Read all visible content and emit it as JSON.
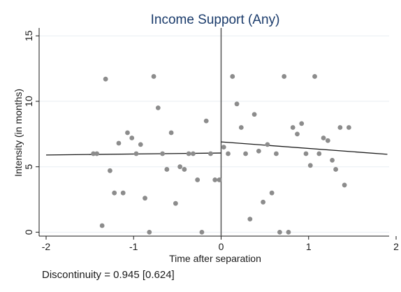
{
  "chart_data": {
    "type": "scatter",
    "title": "Income Support (Any)",
    "xlabel": "Time after separation",
    "ylabel": "Intensity (in months)",
    "xlim": [
      -2.0,
      2.0
    ],
    "ylim": [
      -0.3,
      15.5
    ],
    "x_ticks": [
      -2,
      -1,
      0,
      1,
      2
    ],
    "y_ticks": [
      0,
      5,
      10,
      15
    ],
    "grid": "horizontal",
    "cutoff": 0,
    "annotation": "Discontinuity = 0.945 [0.624]",
    "points": [
      [
        -1.46,
        6.0
      ],
      [
        -1.42,
        6.0
      ],
      [
        -1.36,
        0.5
      ],
      [
        -1.32,
        11.7
      ],
      [
        -1.27,
        4.7
      ],
      [
        -1.22,
        3.0
      ],
      [
        -1.17,
        6.8
      ],
      [
        -1.12,
        3.0
      ],
      [
        -1.07,
        7.6
      ],
      [
        -1.02,
        7.2
      ],
      [
        -0.97,
        6.0
      ],
      [
        -0.92,
        6.7
      ],
      [
        -0.87,
        2.6
      ],
      [
        -0.82,
        0.0
      ],
      [
        -0.77,
        11.9
      ],
      [
        -0.72,
        9.5
      ],
      [
        -0.67,
        6.0
      ],
      [
        -0.62,
        4.8
      ],
      [
        -0.57,
        7.6
      ],
      [
        -0.52,
        2.2
      ],
      [
        -0.47,
        5.0
      ],
      [
        -0.42,
        4.8
      ],
      [
        -0.37,
        6.0
      ],
      [
        -0.32,
        6.0
      ],
      [
        -0.27,
        4.0
      ],
      [
        -0.22,
        0.0
      ],
      [
        -0.17,
        8.5
      ],
      [
        -0.12,
        6.0
      ],
      [
        -0.07,
        4.0
      ],
      [
        -0.02,
        4.0
      ],
      [
        0.03,
        6.5
      ],
      [
        0.08,
        6.0
      ],
      [
        0.13,
        11.9
      ],
      [
        0.18,
        9.8
      ],
      [
        0.23,
        8.0
      ],
      [
        0.28,
        6.0
      ],
      [
        0.33,
        1.0
      ],
      [
        0.38,
        9.0
      ],
      [
        0.43,
        6.2
      ],
      [
        0.48,
        2.3
      ],
      [
        0.53,
        6.7
      ],
      [
        0.58,
        3.0
      ],
      [
        0.63,
        6.0
      ],
      [
        0.67,
        0.0
      ],
      [
        0.72,
        11.9
      ],
      [
        0.77,
        0.0
      ],
      [
        0.82,
        8.0
      ],
      [
        0.87,
        7.5
      ],
      [
        0.92,
        8.3
      ],
      [
        0.97,
        6.0
      ],
      [
        1.02,
        5.1
      ],
      [
        1.07,
        11.9
      ],
      [
        1.12,
        6.0
      ],
      [
        1.17,
        7.2
      ],
      [
        1.22,
        7.0
      ],
      [
        1.27,
        5.5
      ],
      [
        1.31,
        4.8
      ],
      [
        1.36,
        8.0
      ],
      [
        1.41,
        3.6
      ],
      [
        1.46,
        8.0
      ]
    ],
    "fit_lines": [
      {
        "x": [
          -2.0,
          0.0
        ],
        "y": [
          5.9,
          6.05
        ]
      },
      {
        "x": [
          0.0,
          1.9
        ],
        "y": [
          6.9,
          5.95
        ]
      }
    ],
    "colors": {
      "points": "#8c8c8c",
      "line": "#1a1a1a",
      "title": "#1a3b6b",
      "grid": "#e8eef2"
    }
  }
}
